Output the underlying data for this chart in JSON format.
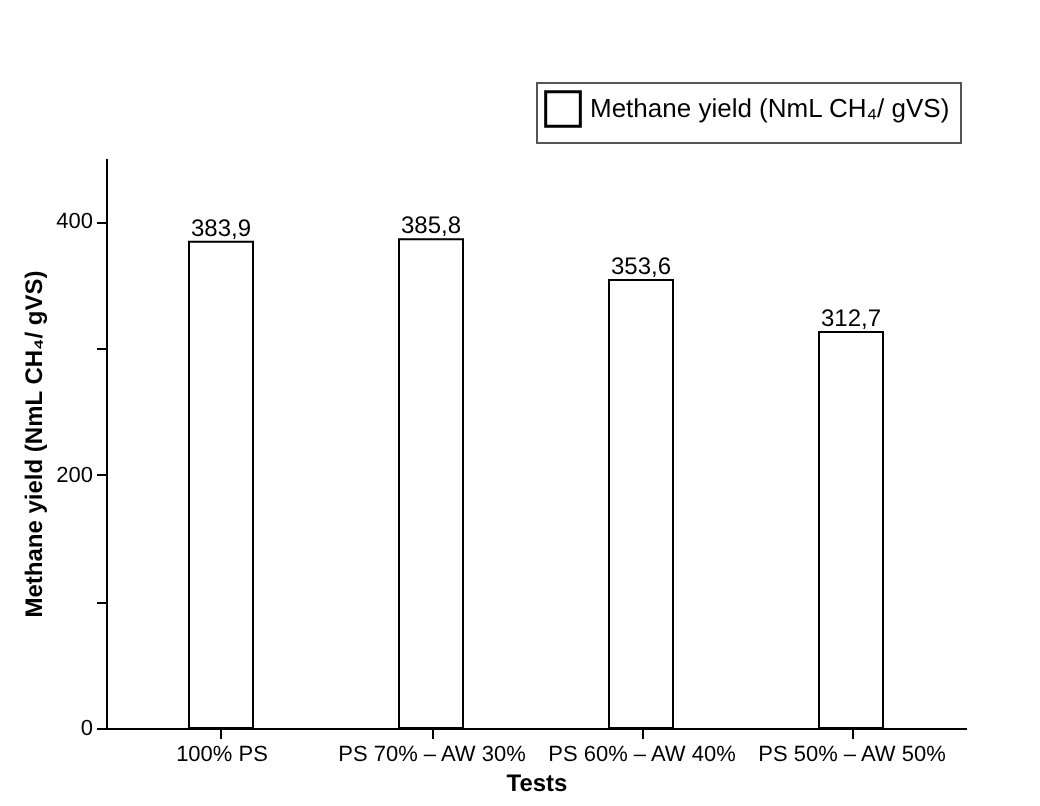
{
  "chart_data": {
    "type": "bar",
    "xlabel": "Tests",
    "ylabel": "Methane yield (NmL CH₄/ gVS)",
    "categories": [
      "100% PS",
      "PS 70% – AW 30%",
      "PS 60% – AW 40%",
      "PS 50% – AW 50%"
    ],
    "series": [
      {
        "name": "Methane yield (NmL CH₄/ gVS)",
        "color": "#ffffff",
        "values": [
          383.9,
          385.8,
          353.6,
          312.7
        ],
        "value_labels": [
          "383,9",
          "385,8",
          "353,6",
          "312,7"
        ]
      }
    ],
    "ylim": [
      0,
      450
    ],
    "yticks": [
      0,
      {
        "value": 100,
        "label": null
      },
      200,
      {
        "value": 300,
        "label": null
      },
      400
    ],
    "grid": false,
    "legend": "top right"
  }
}
